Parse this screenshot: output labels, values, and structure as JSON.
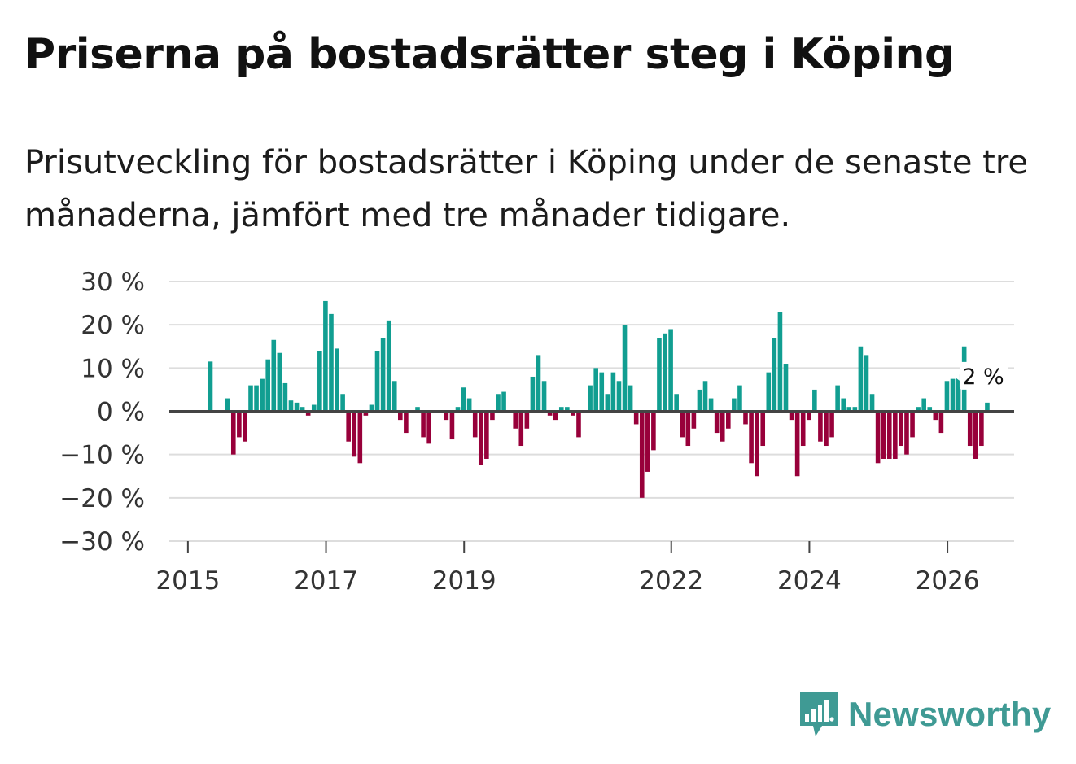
{
  "title": "Priserna på bostadsrätter steg i Köping",
  "subtitle": "Prisutveckling för bostadsrätter i Köping under de senaste tre månaderna, jämfört med tre månader tidigare.",
  "brand": {
    "name": "Newsworthy",
    "icon": "bar-chart-speech-bubble-icon",
    "color": "#3f9a94"
  },
  "colors": {
    "positive": "#119e91",
    "negative": "#98003a",
    "grid": "#dddddd",
    "zero_line": "#444444"
  },
  "chart_data": {
    "type": "bar",
    "title": "Priserna på bostadsrätter steg i Köping",
    "xlabel": "",
    "ylabel": "",
    "ylim": [
      -30,
      30
    ],
    "y_ticks": [
      30,
      20,
      10,
      0,
      -10,
      -20,
      -30
    ],
    "y_tick_labels": [
      "30 %",
      "20 %",
      "10 %",
      "0 %",
      "−10 %",
      "−20 %",
      "−30 %"
    ],
    "x_ticks": [
      {
        "label": "2015",
        "year": 2015
      },
      {
        "label": "2017",
        "year": 2017
      },
      {
        "label": "2019",
        "year": 2019
      },
      {
        "label": "2022",
        "year": 2022
      },
      {
        "label": "2024",
        "year": 2024
      },
      {
        "label": "2026",
        "year": 2026
      }
    ],
    "start": "2015-03",
    "frequency": "monthly",
    "values": [
      11.5,
      0,
      0,
      3,
      -10,
      -6,
      -7,
      6,
      6,
      7.5,
      12,
      16.5,
      13.5,
      6.5,
      2.5,
      2,
      1,
      -1,
      1.5,
      14,
      25.5,
      22.5,
      14.5,
      4,
      -7,
      -10.5,
      -12,
      -1,
      1.5,
      14,
      17,
      21,
      7,
      -2,
      -5,
      0,
      1,
      -6,
      -7.5,
      0,
      0,
      -2,
      -6.5,
      1,
      5.5,
      3,
      -6,
      -12.5,
      -11,
      -2,
      4,
      4.5,
      0,
      -4,
      -8,
      -4,
      8,
      13,
      7,
      -1,
      -2,
      1,
      1,
      -1,
      -6,
      0,
      6,
      10,
      9,
      4,
      9,
      7,
      20,
      6,
      -3,
      -20,
      -14,
      -9,
      17,
      18,
      19,
      4,
      -6,
      -8,
      -4,
      5,
      7,
      3,
      -5,
      -7,
      -4,
      3,
      6,
      -3,
      -12,
      -15,
      -8,
      9,
      17,
      23,
      11,
      -2,
      -15,
      -8,
      -2,
      5,
      -7,
      -8,
      -6,
      6,
      3,
      1,
      1,
      15,
      13,
      4,
      -12,
      -11,
      -11,
      -11,
      -8,
      -10,
      -6,
      1,
      3,
      1,
      -2,
      -5,
      7,
      7.5,
      8.5,
      15,
      -8,
      -11,
      -8,
      2
    ],
    "highlight": {
      "label": "2 %",
      "value": 2,
      "position": "last"
    }
  }
}
